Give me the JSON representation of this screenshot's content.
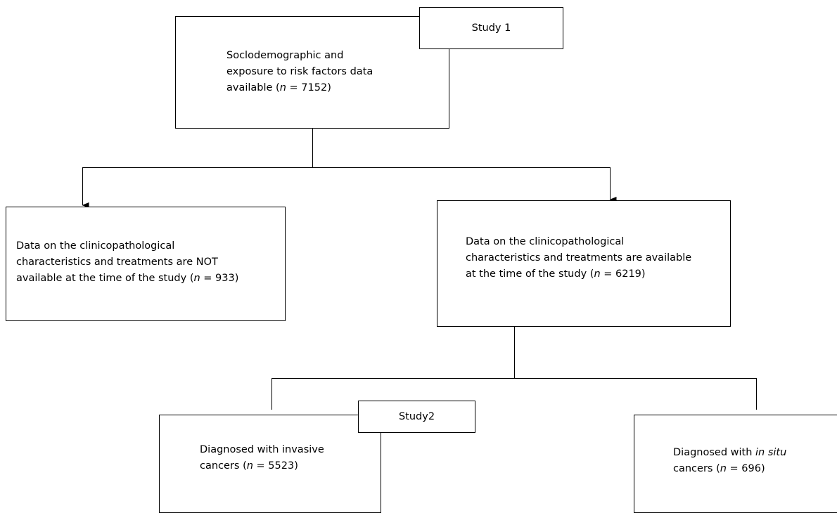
{
  "study1_label": "Study 1",
  "study2_label": "Study2",
  "top_box": {
    "line1": "Soclodemographic and",
    "line2": "exposure to risk factors data",
    "line3_pre": "available (",
    "n_symbol": "n",
    "line3_post": " = 7152)"
  },
  "left_box": {
    "line1": "Data on the clinicopathological",
    "line2": "characteristics and treatments are NOT",
    "line3_pre": "available at the time of the study (",
    "n_symbol": "n",
    "line3_post": " = 933)"
  },
  "right_box": {
    "line1": "Data on the clinicopathological",
    "line2": "characteristics and treatments are available",
    "line3_pre": "at the time of the study (",
    "n_symbol": "n",
    "line3_post": " = 6219)"
  },
  "invasive_box": {
    "line1": "Diagnosed with invasive",
    "line2_pre": "cancers (",
    "n_symbol": "n",
    "line2_post": " = 5523)"
  },
  "insitu_box": {
    "line1_pre": "Diagnosed with ",
    "line1_em": "in situ",
    "line2_pre": "cancers (",
    "n_symbol": "n",
    "line2_post": " = 696)"
  }
}
